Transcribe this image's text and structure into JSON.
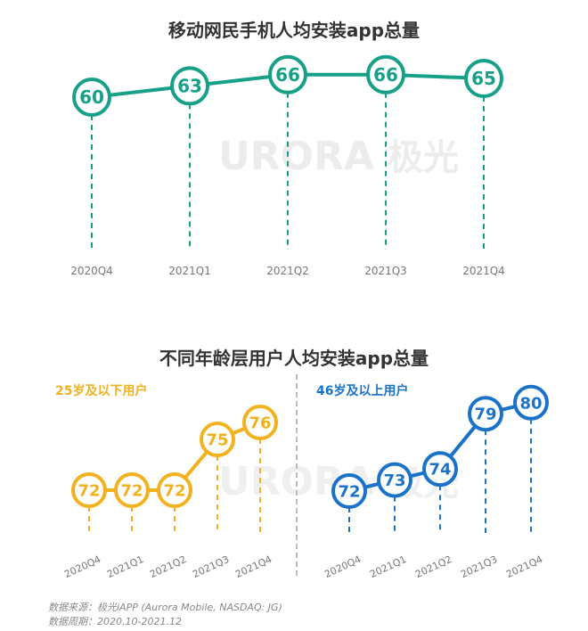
{
  "chart_data": [
    {
      "type": "line",
      "title": "移动网民手机人均安装app总量",
      "categories": [
        "2020Q4",
        "2021Q1",
        "2021Q2",
        "2021Q3",
        "2021Q4"
      ],
      "values": [
        60,
        63,
        66,
        66,
        65
      ],
      "color": "#17a088"
    },
    {
      "type": "line",
      "title": "不同年龄层用户人均安装app总量",
      "panels": [
        {
          "label": "25岁及以下用户",
          "categories": [
            "2020Q4",
            "2021Q1",
            "2021Q2",
            "2021Q3",
            "2021Q4"
          ],
          "values": [
            72,
            72,
            72,
            75,
            76
          ],
          "color": "#f2b11e"
        },
        {
          "label": "46岁及以上用户",
          "categories": [
            "2020Q4",
            "2021Q1",
            "2021Q2",
            "2021Q3",
            "2021Q4"
          ],
          "values": [
            72,
            73,
            74,
            79,
            80
          ],
          "color": "#1a73c8"
        }
      ]
    }
  ],
  "watermark": {
    "text": "URORA",
    "cn": "极光"
  },
  "source": {
    "line1": "数据来源：极光iAPP (Aurora Mobile, NASDAQ: JG)",
    "line2": "数据周期：2020.10-2021.12"
  }
}
